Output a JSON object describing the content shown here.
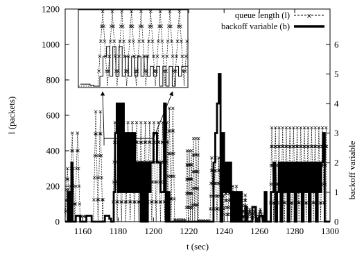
{
  "chart_data": {
    "type": "line",
    "title": "",
    "xlabel": "t (sec)",
    "ylabel": "l (packets)",
    "y2label": "backoff variable",
    "xlim": [
      1150,
      1300
    ],
    "ylim": [
      0,
      1200
    ],
    "y2lim": [
      0,
      7.2
    ],
    "xticks": [
      1160,
      1180,
      1200,
      1220,
      1240,
      1260,
      1280,
      1300
    ],
    "yticks": [
      0,
      200,
      400,
      600,
      800,
      1000,
      1200
    ],
    "y2ticks": [
      0,
      1,
      2,
      3,
      4,
      5,
      6
    ],
    "legend_position": "top-right",
    "series": [
      {
        "name": "queue length (l)",
        "style": "dashed-with-x-markers",
        "color": "#000000",
        "segments": [
          {
            "t_start": 1150,
            "t_end": 1152.5,
            "period": 2.6,
            "peak": 300
          },
          {
            "t_start": 1152.5,
            "t_end": 1158.5,
            "period": 3.0,
            "peak": 500
          },
          {
            "t_start": 1158.5,
            "t_end": 1162,
            "period": 0,
            "peak": 30
          },
          {
            "t_start": 1162,
            "t_end": 1166,
            "period": 0,
            "peak": 0
          },
          {
            "t_start": 1166,
            "t_end": 1171.5,
            "period": 2.6,
            "peak": 620
          },
          {
            "t_start": 1172,
            "t_end": 1177,
            "period": 0,
            "peak": 0
          },
          {
            "t_start": 1177,
            "t_end": 1208,
            "period": 2.45,
            "peak": 560
          },
          {
            "t_start": 1208,
            "t_end": 1212,
            "period": 2.0,
            "peak": 640
          },
          {
            "t_start": 1212,
            "t_end": 1218,
            "period": 0,
            "peak": 10
          },
          {
            "t_start": 1218.5,
            "t_end": 1222,
            "period": 1.2,
            "peak": 400
          },
          {
            "t_start": 1222,
            "t_end": 1225.5,
            "period": 1.4,
            "peak": 470
          },
          {
            "t_start": 1225.5,
            "t_end": 1232,
            "period": 0,
            "peak": 5
          },
          {
            "t_start": 1232,
            "t_end": 1240,
            "period": 2.0,
            "peak": 360
          },
          {
            "t_start": 1240,
            "t_end": 1247,
            "period": 2.0,
            "peak": 200
          },
          {
            "t_start": 1247,
            "t_end": 1253,
            "period": 2.0,
            "peak": 150
          },
          {
            "t_start": 1253,
            "t_end": 1264,
            "period": 3.0,
            "peak": 70
          },
          {
            "t_start": 1266,
            "t_end": 1298,
            "period": 2.05,
            "peak": 530
          }
        ]
      },
      {
        "name": "backoff variable (b)",
        "style": "thick-step",
        "color": "#000000",
        "axis": "right",
        "steps": [
          [
            1150,
            0
          ],
          [
            1151.5,
            1
          ],
          [
            1152.5,
            0
          ],
          [
            1153.5,
            2
          ],
          [
            1154.2,
            0
          ],
          [
            1156,
            0.2
          ],
          [
            1158.5,
            0
          ],
          [
            1162,
            0.2
          ],
          [
            1165,
            0
          ],
          [
            1170,
            0
          ],
          [
            1172.5,
            0.2
          ],
          [
            1175,
            0.1
          ],
          [
            1176,
            0
          ],
          [
            1177.5,
            1
          ],
          [
            1178.3,
            3
          ],
          [
            1179.2,
            4
          ],
          [
            1180,
            1
          ],
          [
            1180.8,
            4
          ],
          [
            1181.6,
            1
          ],
          [
            1182.4,
            4
          ],
          [
            1183.2,
            1
          ],
          [
            1184,
            3
          ],
          [
            1184.8,
            1
          ],
          [
            1185.6,
            3
          ],
          [
            1186.4,
            1
          ],
          [
            1187.2,
            3
          ],
          [
            1188,
            1
          ],
          [
            1188.8,
            3
          ],
          [
            1189.6,
            1
          ],
          [
            1190.4,
            2
          ],
          [
            1191.2,
            1
          ],
          [
            1192,
            2
          ],
          [
            1192.8,
            0
          ],
          [
            1193.6,
            2
          ],
          [
            1194.4,
            0
          ],
          [
            1195.2,
            2
          ],
          [
            1196,
            0
          ],
          [
            1196.8,
            2
          ],
          [
            1197.6,
            1
          ],
          [
            1198.4,
            2
          ],
          [
            1200,
            3
          ],
          [
            1202,
            2
          ],
          [
            1204,
            1
          ],
          [
            1206,
            4
          ],
          [
            1207,
            0
          ],
          [
            1208,
            1
          ],
          [
            1209,
            0
          ],
          [
            1212,
            0
          ],
          [
            1234,
            2
          ],
          [
            1235,
            3
          ],
          [
            1236,
            4
          ],
          [
            1237,
            5
          ],
          [
            1238,
            0
          ],
          [
            1239,
            3
          ],
          [
            1240,
            1
          ],
          [
            1241,
            2
          ],
          [
            1242,
            1
          ],
          [
            1243,
            2
          ],
          [
            1244,
            0
          ],
          [
            1245,
            1
          ],
          [
            1246,
            0
          ],
          [
            1247,
            1
          ],
          [
            1248,
            0
          ],
          [
            1249,
            1
          ],
          [
            1250,
            0
          ],
          [
            1252,
            0.5
          ],
          [
            1253,
            0
          ],
          [
            1256,
            0.5
          ],
          [
            1258,
            0
          ],
          [
            1260,
            0.2
          ],
          [
            1262,
            0
          ],
          [
            1263,
            1
          ],
          [
            1264,
            0
          ],
          [
            1266,
            0
          ],
          [
            1266.5,
            1
          ],
          [
            1268,
            2
          ],
          [
            1269,
            0
          ],
          [
            1270,
            1
          ],
          [
            1271,
            2
          ],
          [
            1272,
            0
          ],
          [
            1273,
            2
          ],
          [
            1274,
            1
          ],
          [
            1275,
            2
          ],
          [
            1276,
            0
          ],
          [
            1277,
            2
          ],
          [
            1278,
            1
          ],
          [
            1279,
            2
          ],
          [
            1280,
            0
          ],
          [
            1281,
            2
          ],
          [
            1282,
            1
          ],
          [
            1283,
            2
          ],
          [
            1284,
            0
          ],
          [
            1285,
            2
          ],
          [
            1286,
            1
          ],
          [
            1287,
            2
          ],
          [
            1288,
            0
          ],
          [
            1289,
            2
          ],
          [
            1290,
            1
          ],
          [
            1291,
            2
          ],
          [
            1292,
            0
          ],
          [
            1293,
            2
          ],
          [
            1294,
            1
          ],
          [
            1295,
            2
          ],
          [
            1296,
            3
          ],
          [
            1297,
            0
          ],
          [
            1300,
            0
          ]
        ]
      }
    ],
    "inset": {
      "source_range": [
        1172,
        1200
      ],
      "source_ylim": [
        0,
        520
      ],
      "grid": false,
      "description_position": "top-left"
    }
  }
}
